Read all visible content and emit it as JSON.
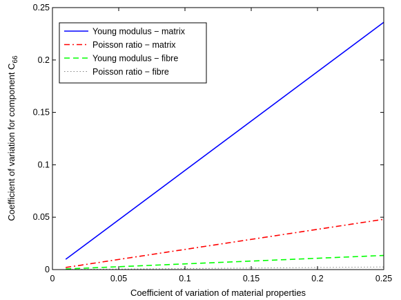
{
  "chart_data": {
    "type": "line",
    "xlabel": "Coefficient of variation of material properties",
    "ylabel": "Coefficient of variation for component C",
    "ylabel_subscript": "66",
    "xlim": [
      0,
      0.25
    ],
    "ylim": [
      0,
      0.25
    ],
    "x_ticks": [
      0,
      0.05,
      0.1,
      0.15,
      0.2,
      0.25
    ],
    "x_tick_labels": [
      "0",
      "0.05",
      "0.1",
      "0.15",
      "0.2",
      "0.25"
    ],
    "y_ticks": [
      0,
      0.05,
      0.1,
      0.15,
      0.2,
      0.25
    ],
    "y_tick_labels": [
      "0",
      "0.05",
      "0.1",
      "0.15",
      "0.2",
      "0.25"
    ],
    "grid": false,
    "legend_position": "top-left",
    "series": [
      {
        "name": "Young modulus − matrix",
        "color": "#0000ff",
        "style": "solid",
        "x": [
          0.01,
          0.25
        ],
        "y": [
          0.0098,
          0.236
        ]
      },
      {
        "name": "Poisson ratio − matrix",
        "color": "#ff0000",
        "style": "dashdot",
        "x": [
          0.01,
          0.25
        ],
        "y": [
          0.002,
          0.048
        ]
      },
      {
        "name": "Young modulus − fibre",
        "color": "#00ff00",
        "style": "dashed",
        "x": [
          0.01,
          0.25
        ],
        "y": [
          0.0006,
          0.0135
        ]
      },
      {
        "name": "Poisson ratio − fibre",
        "color": "#808080",
        "style": "dotted",
        "x": [
          0.01,
          0.25
        ],
        "y": [
          0.0001,
          0.0025
        ]
      }
    ]
  }
}
